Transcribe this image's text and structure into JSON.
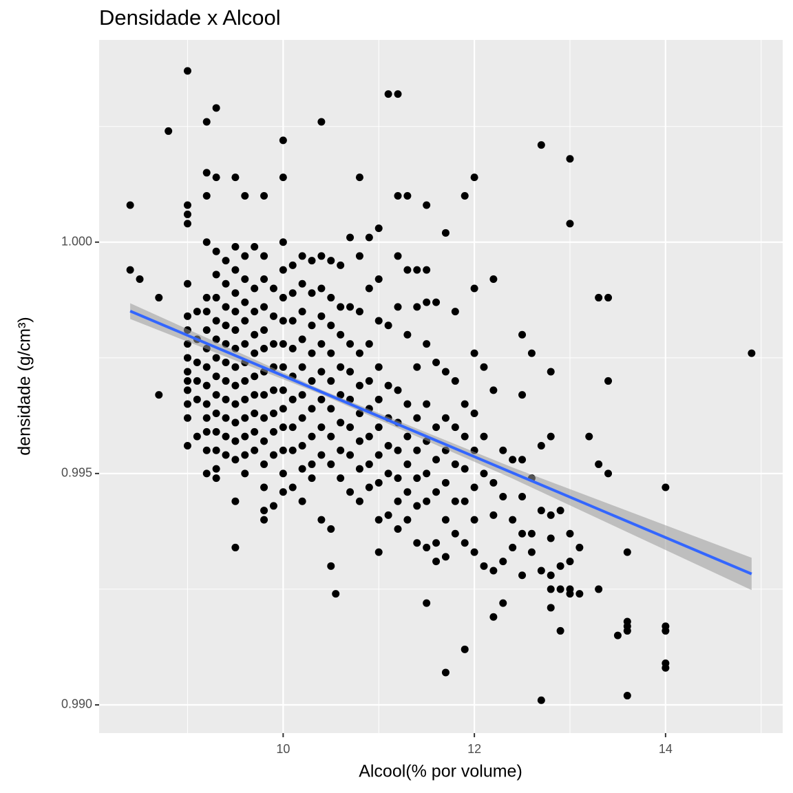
{
  "chart_data": {
    "type": "scatter",
    "title": "Densidade x Alcool",
    "x_label": "Alcool(% por volume)",
    "y_label": "densidade (g/cm³)",
    "point_color": "#000000",
    "background": "#ebebeb",
    "grid": true,
    "xlim": [
      8.075,
      15.225
    ],
    "ylim": [
      0.98939,
      1.00437
    ],
    "xticks": [
      10,
      12,
      14
    ],
    "yticks": [
      {
        "value": 0.99,
        "label": "0.990"
      },
      0.995,
      {
        "value": 1,
        "label": "1.000"
      }
    ],
    "x_minor_grid": [
      9,
      11,
      13,
      15
    ],
    "y_minor_grid": [
      0.9925,
      0.9975,
      1.0025
    ],
    "x": [
      8.4,
      8.4,
      8.5,
      8.7,
      8.7,
      8.8,
      9.0,
      9.2,
      9.3,
      9.2,
      9.3,
      9.2,
      9.0,
      9.0,
      9.0,
      9.5,
      9.8,
      9.6,
      10.0,
      10.0,
      10.4,
      11.1,
      11.2,
      10.8,
      11.2,
      11.3,
      11.5,
      11.9,
      12.0,
      12.7,
      13.0,
      13.0,
      14.9,
      13.3,
      13.4,
      13.4,
      13.2,
      13.3,
      13.4,
      14.0,
      13.6,
      13.3,
      14.0,
      14.0,
      14.0,
      14.0,
      13.6,
      13.6,
      13.6,
      13.5,
      13.6,
      12.7,
      11.7,
      11.9,
      12.2,
      12.3,
      11.5,
      10.55,
      10.5,
      9.5,
      10.4,
      10.5,
      12.9,
      13.1,
      13.0,
      12.8,
      13.1,
      9.0,
      9.0,
      9.0,
      9.0,
      9.0,
      9.0,
      9.0,
      9.0,
      9.0,
      9.0,
      9.0,
      9.1,
      9.1,
      9.1,
      9.1,
      9.1,
      9.1,
      9.2,
      9.2,
      9.2,
      9.2,
      9.2,
      9.2,
      9.2,
      9.2,
      9.2,
      9.2,
      9.2,
      9.2,
      9.3,
      9.3,
      9.3,
      9.3,
      9.3,
      9.3,
      9.3,
      9.3,
      9.3,
      9.3,
      9.3,
      9.3,
      9.3,
      9.4,
      9.4,
      9.4,
      9.4,
      9.4,
      9.4,
      9.4,
      9.4,
      9.4,
      9.4,
      9.4,
      9.5,
      9.5,
      9.5,
      9.5,
      9.5,
      9.5,
      9.5,
      9.5,
      9.5,
      9.5,
      9.5,
      9.5,
      9.5,
      9.6,
      9.6,
      9.6,
      9.6,
      9.6,
      9.6,
      9.6,
      9.6,
      9.6,
      9.6,
      9.6,
      9.6,
      9.7,
      9.7,
      9.7,
      9.7,
      9.7,
      9.7,
      9.7,
      9.7,
      9.7,
      9.7,
      9.8,
      9.8,
      9.8,
      9.8,
      9.8,
      9.8,
      9.8,
      9.8,
      9.8,
      9.8,
      9.8,
      9.8,
      9.8,
      9.9,
      9.9,
      9.9,
      9.9,
      9.9,
      9.9,
      9.9,
      9.9,
      9.9,
      10.0,
      10.0,
      10.0,
      10.0,
      10.0,
      10.0,
      10.0,
      10.0,
      10.0,
      10.0,
      10.0,
      10.0,
      10.1,
      10.1,
      10.1,
      10.1,
      10.1,
      10.1,
      10.1,
      10.1,
      10.1,
      10.2,
      10.2,
      10.2,
      10.2,
      10.2,
      10.2,
      10.2,
      10.2,
      10.2,
      10.2,
      10.3,
      10.3,
      10.3,
      10.3,
      10.3,
      10.3,
      10.3,
      10.3,
      10.3,
      10.4,
      10.4,
      10.4,
      10.4,
      10.4,
      10.4,
      10.4,
      10.4,
      10.5,
      10.5,
      10.5,
      10.5,
      10.5,
      10.5,
      10.5,
      10.5,
      10.6,
      10.6,
      10.6,
      10.6,
      10.6,
      10.6,
      10.6,
      10.6,
      10.7,
      10.7,
      10.7,
      10.7,
      10.7,
      10.7,
      10.7,
      10.7,
      10.8,
      10.8,
      10.8,
      10.8,
      10.8,
      10.8,
      10.8,
      10.8,
      10.9,
      10.9,
      10.9,
      10.9,
      10.9,
      10.9,
      10.9,
      10.9,
      11.0,
      11.0,
      11.0,
      11.0,
      11.0,
      11.0,
      11.0,
      11.0,
      11.0,
      11.0,
      11.1,
      11.1,
      11.1,
      11.1,
      11.1,
      11.1,
      11.2,
      11.2,
      11.2,
      11.2,
      11.2,
      11.2,
      11.2,
      11.2,
      11.3,
      11.3,
      11.3,
      11.3,
      11.3,
      11.3,
      11.3,
      11.4,
      11.4,
      11.4,
      11.4,
      11.4,
      11.4,
      11.4,
      11.4,
      11.5,
      11.5,
      11.5,
      11.5,
      11.5,
      11.5,
      11.5,
      11.5,
      11.6,
      11.6,
      11.6,
      11.6,
      11.6,
      11.6,
      11.6,
      11.7,
      11.7,
      11.7,
      11.7,
      11.7,
      11.7,
      11.7,
      11.8,
      11.8,
      11.8,
      11.8,
      11.8,
      11.8,
      11.9,
      11.9,
      11.9,
      11.9,
      11.9,
      12.0,
      12.0,
      12.0,
      12.0,
      12.0,
      12.0,
      12.0,
      12.1,
      12.1,
      12.1,
      12.1,
      12.2,
      12.2,
      12.2,
      12.2,
      12.2,
      12.3,
      12.3,
      12.3,
      12.4,
      12.4,
      12.4,
      12.5,
      12.5,
      12.5,
      12.5,
      12.5,
      12.5,
      12.6,
      12.6,
      12.6,
      12.6,
      12.7,
      12.7,
      12.7,
      12.8,
      12.8,
      12.8,
      12.8,
      12.8,
      12.8,
      12.9,
      12.9,
      12.9,
      13.0,
      13.0,
      13.0
    ],
    "values": [
      1.0008,
      0.9994,
      0.9992,
      0.9988,
      0.9967,
      1.0024,
      1.0037,
      1.0026,
      1.0029,
      1.0015,
      1.0014,
      1.001,
      1.0008,
      1.0006,
      1.0004,
      1.0014,
      1.001,
      1.001,
      1.0022,
      1.0014,
      1.0026,
      1.0032,
      1.0032,
      1.0014,
      1.001,
      1.001,
      1.0008,
      1.001,
      1.0014,
      1.0021,
      1.0018,
      1.0004,
      0.9976,
      0.9988,
      0.9988,
      0.997,
      0.9958,
      0.9952,
      0.995,
      0.9947,
      0.9933,
      0.9925,
      0.9917,
      0.9916,
      0.9908,
      0.9909,
      0.9918,
      0.9917,
      0.9916,
      0.9915,
      0.9902,
      0.9901,
      0.9907,
      0.9912,
      0.9919,
      0.9922,
      0.9922,
      0.9924,
      0.993,
      0.9934,
      0.994,
      0.9938,
      0.9916,
      0.9924,
      0.9924,
      0.9921,
      0.9934,
      0.9991,
      0.9984,
      0.9981,
      0.9978,
      0.9975,
      0.9972,
      0.997,
      0.9968,
      0.9965,
      0.9962,
      0.9956,
      0.9985,
      0.9979,
      0.9974,
      0.997,
      0.9966,
      0.9958,
      1.0,
      0.9988,
      0.9985,
      0.9981,
      0.9977,
      0.9973,
      0.9969,
      0.9965,
      0.9962,
      0.9959,
      0.9955,
      0.995,
      0.9998,
      0.9993,
      0.9988,
      0.9983,
      0.9979,
      0.9975,
      0.9971,
      0.9967,
      0.9963,
      0.9959,
      0.9955,
      0.9951,
      0.9949,
      0.9996,
      0.9991,
      0.9986,
      0.9982,
      0.9978,
      0.9974,
      0.997,
      0.9966,
      0.9962,
      0.9958,
      0.9954,
      0.9999,
      0.9994,
      0.9989,
      0.9985,
      0.9981,
      0.9977,
      0.9973,
      0.9969,
      0.9965,
      0.9961,
      0.9957,
      0.9953,
      0.9944,
      0.9997,
      0.9992,
      0.9987,
      0.9983,
      0.9978,
      0.9974,
      0.997,
      0.9966,
      0.9962,
      0.9958,
      0.9954,
      0.995,
      0.9999,
      0.999,
      0.9985,
      0.998,
      0.9976,
      0.9971,
      0.9967,
      0.9963,
      0.9959,
      0.9955,
      0.9997,
      0.9992,
      0.9986,
      0.9981,
      0.9977,
      0.9972,
      0.9967,
      0.9962,
      0.9957,
      0.9952,
      0.9947,
      0.9942,
      0.994,
      0.999,
      0.9984,
      0.9978,
      0.9973,
      0.9968,
      0.9963,
      0.9959,
      0.9954,
      0.9943,
      1.0,
      0.9994,
      0.9988,
      0.9983,
      0.9978,
      0.9973,
      0.9968,
      0.9964,
      0.996,
      0.9955,
      0.995,
      0.9946,
      0.9995,
      0.9989,
      0.9983,
      0.9977,
      0.9971,
      0.9966,
      0.996,
      0.9955,
      0.9947,
      0.9997,
      0.9991,
      0.9985,
      0.9979,
      0.9973,
      0.9967,
      0.9962,
      0.9956,
      0.9951,
      0.9944,
      0.9996,
      0.9989,
      0.9982,
      0.9976,
      0.997,
      0.9964,
      0.9958,
      0.9952,
      0.9949,
      0.9997,
      0.999,
      0.9984,
      0.9978,
      0.9972,
      0.9966,
      0.996,
      0.9954,
      0.9996,
      0.9988,
      0.9982,
      0.9976,
      0.997,
      0.9964,
      0.9958,
      0.9952,
      0.9995,
      0.9986,
      0.998,
      0.9973,
      0.9967,
      0.9961,
      0.9955,
      0.9949,
      1.0001,
      0.9986,
      0.9978,
      0.9972,
      0.9966,
      0.996,
      0.9954,
      0.9946,
      0.9997,
      0.9985,
      0.9976,
      0.9969,
      0.9963,
      0.9957,
      0.9951,
      0.9944,
      1.0001,
      0.999,
      0.9978,
      0.997,
      0.9964,
      0.9958,
      0.9952,
      0.9947,
      1.0003,
      0.9992,
      0.9983,
      0.9973,
      0.9966,
      0.996,
      0.9954,
      0.9948,
      0.994,
      0.9933,
      0.9982,
      0.9969,
      0.9962,
      0.9956,
      0.995,
      0.9941,
      0.9997,
      0.9986,
      0.9968,
      0.9961,
      0.9955,
      0.9949,
      0.9944,
      0.9938,
      0.9994,
      0.998,
      0.9965,
      0.9958,
      0.9952,
      0.9946,
      0.994,
      0.9994,
      0.9986,
      0.9973,
      0.9962,
      0.9955,
      0.9949,
      0.9943,
      0.9935,
      0.9994,
      0.9987,
      0.9978,
      0.9965,
      0.9957,
      0.995,
      0.9944,
      0.9934,
      0.9987,
      0.9974,
      0.996,
      0.9953,
      0.9946,
      0.9935,
      0.9931,
      1.0002,
      0.9972,
      0.9962,
      0.9955,
      0.9948,
      0.994,
      0.9932,
      0.9985,
      0.997,
      0.996,
      0.9952,
      0.9944,
      0.9937,
      0.9965,
      0.9958,
      0.9951,
      0.9944,
      0.9935,
      0.999,
      0.9976,
      0.9963,
      0.9955,
      0.9947,
      0.994,
      0.9933,
      0.9973,
      0.9958,
      0.995,
      0.993,
      0.9992,
      0.9968,
      0.9948,
      0.9941,
      0.9929,
      0.9955,
      0.9945,
      0.9931,
      0.9953,
      0.994,
      0.9934,
      0.998,
      0.9967,
      0.9953,
      0.9945,
      0.9937,
      0.9928,
      0.9976,
      0.9949,
      0.9937,
      0.9933,
      0.9956,
      0.9942,
      0.9929,
      0.9972,
      0.9958,
      0.9941,
      0.9936,
      0.9928,
      0.9925,
      0.9942,
      0.993,
      0.9925,
      0.9937,
      0.9931,
      0.9925
    ],
    "trend": {
      "color": "#3366ff",
      "band_color": "#999999",
      "x": [
        8.4,
        14.9
      ],
      "values": [
        0.99851,
        0.99283
      ],
      "ci_x": [
        8.4,
        10.4,
        12.4,
        14.9
      ],
      "ci_lower": [
        0.99834,
        0.99671,
        0.99489,
        0.99248
      ],
      "ci_upper": [
        0.99868,
        0.99681,
        0.99513,
        0.99318
      ]
    }
  }
}
